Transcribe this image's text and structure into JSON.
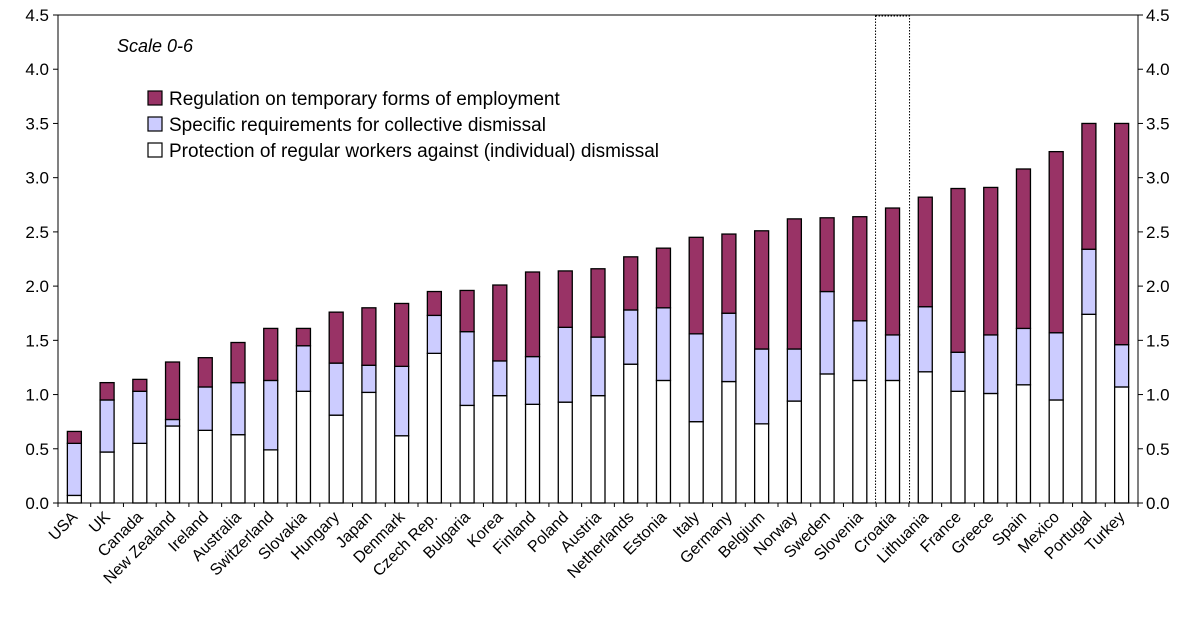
{
  "chart_data": {
    "type": "bar",
    "stacked": true,
    "annotation": "Scale 0-6",
    "highlighted_category": "Croatia",
    "categories": [
      "USA",
      "UK",
      "Canada",
      "New Zealand",
      "Ireland",
      "Australia",
      "Switzerland",
      "Slovakia",
      "Hungary",
      "Japan",
      "Denmark",
      "Czech Rep.",
      "Bulgaria",
      "Korea",
      "Finland",
      "Poland",
      "Austria",
      "Netherlands",
      "Estonia",
      "Italy",
      "Germany",
      "Belgium",
      "Norway",
      "Sweden",
      "Slovenia",
      "Croatia",
      "Lithuania",
      "France",
      "Greece",
      "Spain",
      "Mexico",
      "Portugal",
      "Turkey"
    ],
    "series": [
      {
        "name": "Protection of regular workers against (individual) dismissal",
        "color": "#ffffff",
        "values": [
          0.07,
          0.47,
          0.55,
          0.71,
          0.67,
          0.63,
          0.49,
          1.03,
          0.81,
          1.02,
          0.62,
          1.38,
          0.9,
          0.99,
          0.91,
          0.93,
          0.99,
          1.28,
          1.13,
          0.75,
          1.12,
          0.73,
          0.94,
          1.19,
          1.13,
          1.13,
          1.21,
          1.03,
          1.01,
          1.09,
          0.95,
          1.74,
          1.07
        ]
      },
      {
        "name": "Specific requirements for collective dismissal",
        "color": "#ccccff",
        "values": [
          0.48,
          0.48,
          0.48,
          0.06,
          0.4,
          0.48,
          0.64,
          0.42,
          0.48,
          0.25,
          0.64,
          0.35,
          0.68,
          0.32,
          0.44,
          0.69,
          0.54,
          0.5,
          0.67,
          0.81,
          0.63,
          0.69,
          0.48,
          0.76,
          0.55,
          0.42,
          0.6,
          0.36,
          0.54,
          0.52,
          0.62,
          0.6,
          0.39
        ]
      },
      {
        "name": "Regulation on temporary forms of employment",
        "color": "#993366",
        "values": [
          0.11,
          0.16,
          0.11,
          0.53,
          0.27,
          0.37,
          0.48,
          0.16,
          0.47,
          0.53,
          0.58,
          0.22,
          0.38,
          0.7,
          0.78,
          0.52,
          0.63,
          0.49,
          0.55,
          0.89,
          0.73,
          1.09,
          1.2,
          0.68,
          0.96,
          1.17,
          1.01,
          1.51,
          1.36,
          1.47,
          1.67,
          1.16,
          2.04
        ]
      }
    ],
    "ylim": [
      0,
      4.5
    ],
    "yticks": [
      "0.0",
      "0.5",
      "1.0",
      "1.5",
      "2.0",
      "2.5",
      "3.0",
      "3.5",
      "4.0",
      "4.5"
    ],
    "ytick_values": [
      0,
      0.5,
      1,
      1.5,
      2,
      2.5,
      3,
      3.5,
      4,
      4.5
    ],
    "xlabel": "",
    "ylabel": "",
    "legend_position": "top-left",
    "grid": false
  }
}
